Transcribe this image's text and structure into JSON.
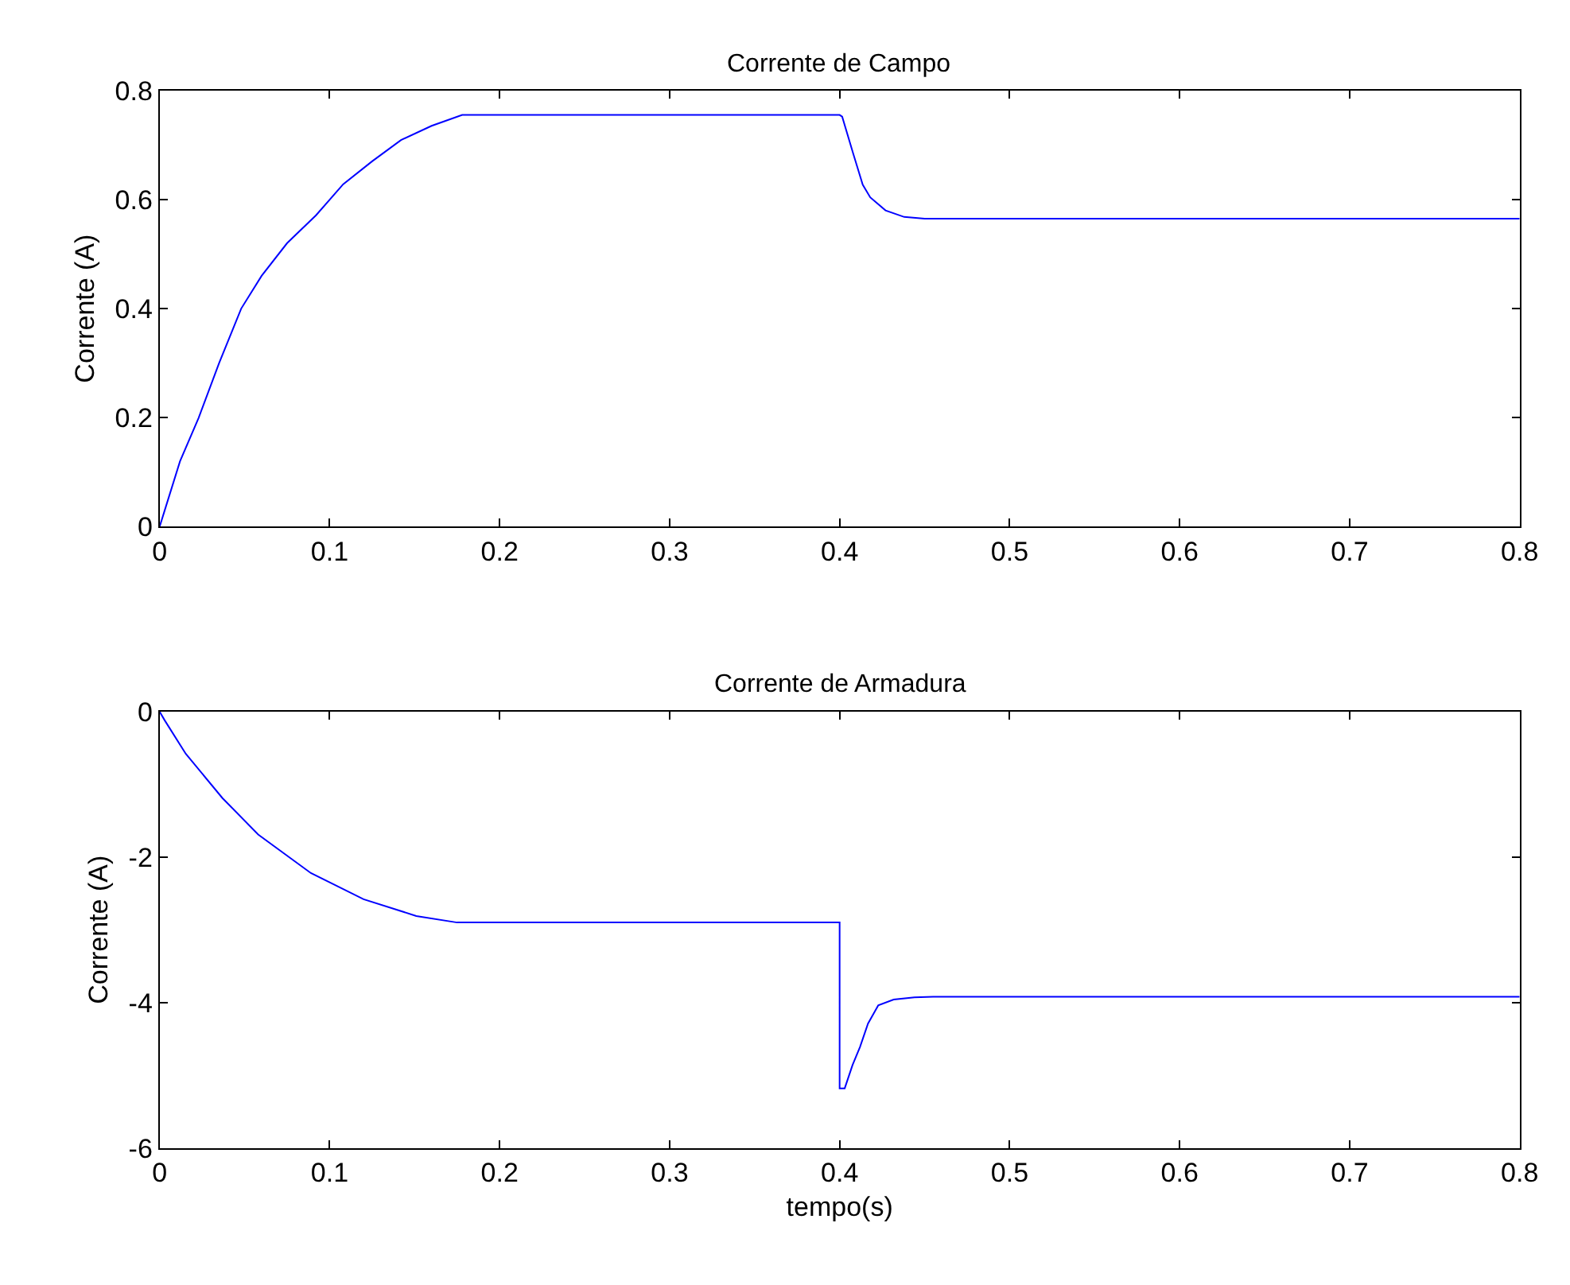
{
  "chart_data": [
    {
      "type": "line",
      "title": "Corrente de Campo",
      "ylabel": "Corrente (A)",
      "xlim": [
        0,
        0.8
      ],
      "xticks": [
        0,
        0.1,
        0.2,
        0.3,
        0.4,
        0.5,
        0.6,
        0.7,
        0.8
      ],
      "ylim": [
        0,
        0.8
      ],
      "yticks": [
        0,
        0.2,
        0.4,
        0.6,
        0.8
      ],
      "x": [
        0,
        0.003,
        0.012,
        0.023,
        0.035,
        0.048,
        0.06,
        0.075,
        0.092,
        0.108,
        0.125,
        0.142,
        0.16,
        0.178,
        0.25,
        0.35,
        0.4,
        0.4015,
        0.408,
        0.4136,
        0.418,
        0.427,
        0.438,
        0.45,
        0.6,
        0.8
      ],
      "series": [
        {
          "color": "#0000ff",
          "values": [
            0,
            0.03,
            0.12,
            0.2,
            0.3,
            0.4,
            0.46,
            0.52,
            0.571,
            0.628,
            0.67,
            0.709,
            0.735,
            0.755,
            0.755,
            0.755,
            0.755,
            0.752,
            0.684,
            0.627,
            0.604,
            0.58,
            0.568,
            0.565,
            0.565,
            0.565
          ]
        }
      ]
    },
    {
      "type": "line",
      "title": "Corrente de Armadura",
      "xlabel": "tempo(s)",
      "ylabel": "Corrente (A)",
      "xlim": [
        0,
        0.8
      ],
      "xticks": [
        0,
        0.1,
        0.2,
        0.3,
        0.4,
        0.5,
        0.6,
        0.7,
        0.8
      ],
      "ylim": [
        -6,
        0
      ],
      "yticks": [
        -6,
        -4,
        -2,
        0
      ],
      "x": [
        0,
        0.003,
        0.0154,
        0.037,
        0.058,
        0.089,
        0.12,
        0.151,
        0.175,
        0.25,
        0.35,
        0.4,
        0.4,
        0.403,
        0.4076,
        0.412,
        0.4167,
        0.4227,
        0.4318,
        0.444,
        0.455,
        0.6,
        0.8
      ],
      "series": [
        {
          "color": "#0000ff",
          "values": [
            0,
            -0.12,
            -0.58,
            -1.19,
            -1.69,
            -2.22,
            -2.58,
            -2.81,
            -2.9,
            -2.9,
            -2.9,
            -2.9,
            -5.18,
            -5.18,
            -4.86,
            -4.61,
            -4.29,
            -4.04,
            -3.96,
            -3.93,
            -3.92,
            -3.92,
            -3.92
          ]
        }
      ]
    }
  ]
}
